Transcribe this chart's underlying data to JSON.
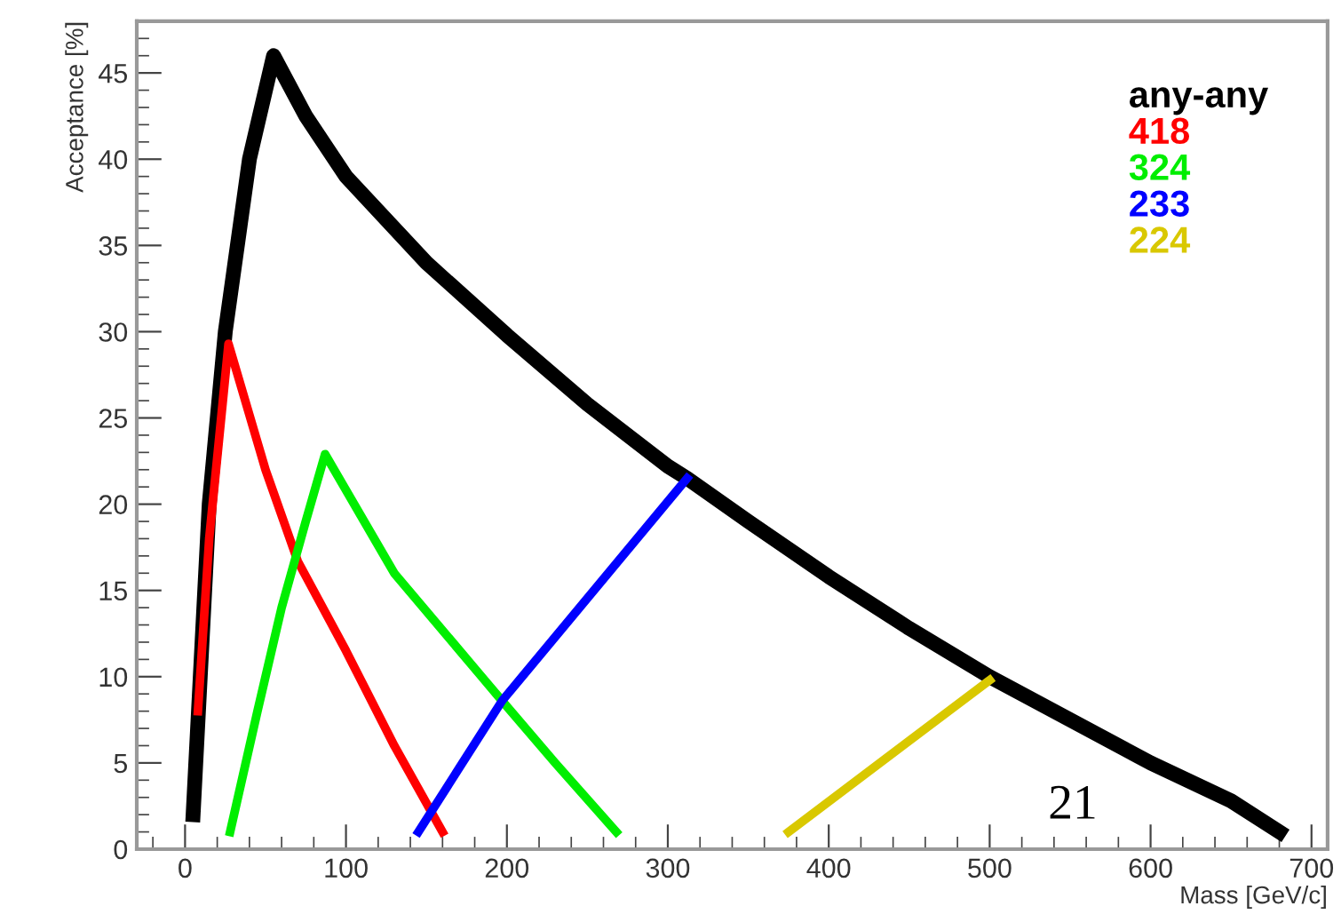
{
  "chart_data": {
    "type": "line",
    "xlabel": "Mass [GeV/c]",
    "ylabel": "Acceptance [%]",
    "xlim": [
      -30,
      710
    ],
    "ylim": [
      0,
      48
    ],
    "xticks": [
      0,
      100,
      200,
      300,
      400,
      500,
      600,
      700
    ],
    "yticks": [
      0,
      5,
      10,
      15,
      20,
      25,
      30,
      35,
      40,
      45
    ],
    "grid": false,
    "legend": "top right",
    "marker": "none",
    "line_style": "solid",
    "annotations": [
      "21"
    ],
    "series": [
      {
        "name": "any-any",
        "color": "#000000",
        "x": [
          5,
          10,
          15,
          25,
          40,
          55,
          75,
          100,
          150,
          200,
          250,
          300,
          312,
          350,
          400,
          450,
          500,
          550,
          600,
          650,
          680
        ],
        "values": [
          2,
          11,
          20,
          30,
          40,
          46,
          42.5,
          39,
          34,
          29.8,
          25.8,
          22.2,
          21.5,
          19,
          15.8,
          12.8,
          10,
          7.5,
          5,
          2.8,
          1
        ]
      },
      {
        "name": "418",
        "color": "#ff0000",
        "x": [
          8,
          15,
          27,
          50,
          70,
          100,
          130,
          160
        ],
        "values": [
          8,
          18,
          29.3,
          22,
          16.7,
          11.5,
          6,
          1
        ]
      },
      {
        "name": "324",
        "color": "#00ee00",
        "x": [
          28,
          45,
          60,
          75,
          87,
          130,
          197,
          230,
          268
        ],
        "values": [
          1,
          8,
          14,
          19,
          22.9,
          16,
          8.6,
          5,
          1
        ]
      },
      {
        "name": "233",
        "color": "#0000ff",
        "x": [
          145,
          197,
          312
        ],
        "values": [
          1,
          8.6,
          21.5
        ]
      },
      {
        "name": "224",
        "color": "#d9c800",
        "x": [
          375,
          500
        ],
        "values": [
          1,
          9.8
        ]
      }
    ]
  }
}
